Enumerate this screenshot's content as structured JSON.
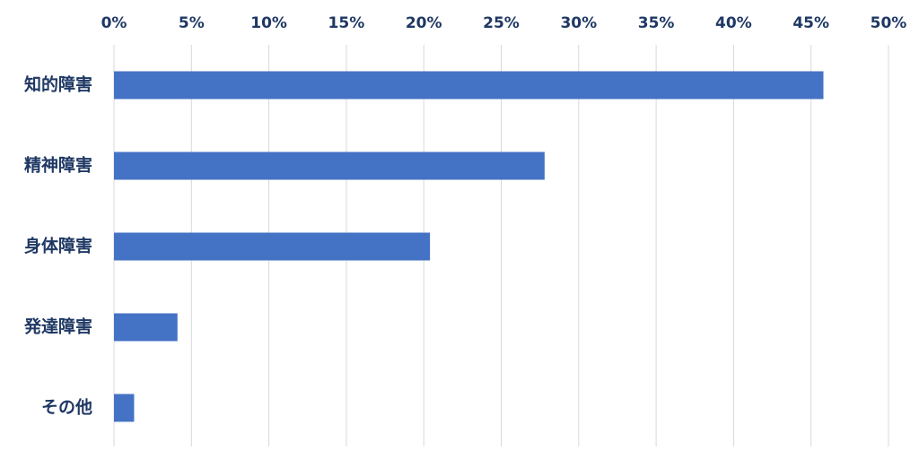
{
  "chart_data": {
    "type": "bar",
    "orientation": "horizontal",
    "title": "",
    "xlabel": "",
    "ylabel": "",
    "categories": [
      "知的障害",
      "精神障害",
      "身体障害",
      "発達障害",
      "その他"
    ],
    "values": [
      45.8,
      27.8,
      20.4,
      4.1,
      1.3
    ],
    "unit": "%",
    "xlim": [
      0,
      50
    ],
    "x_ticks": [
      0,
      5,
      10,
      15,
      20,
      25,
      30,
      35,
      40,
      45,
      50
    ],
    "x_tick_labels": [
      "0%",
      "5%",
      "10%",
      "15%",
      "20%",
      "25%",
      "30%",
      "35%",
      "40%",
      "45%",
      "50%"
    ],
    "x_axis_position": "top",
    "grid": true,
    "legend": "none",
    "colors": {
      "bar": "#4472C4",
      "grid": "#D9D9D9",
      "text": "#1F3864"
    }
  }
}
